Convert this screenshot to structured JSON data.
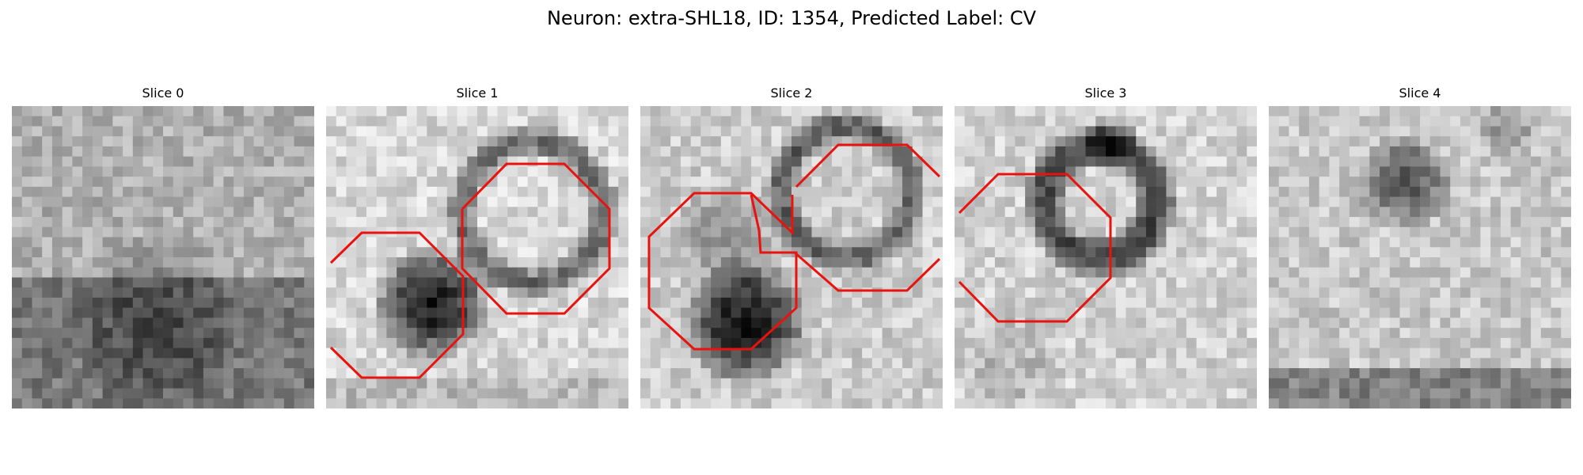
{
  "figure": {
    "title": "Neuron: extra-SHL18, ID: 1354, Predicted Label: CV"
  },
  "panels": [
    {
      "title": "Slice 0"
    },
    {
      "title": "Slice 1"
    },
    {
      "title": "Slice 2"
    },
    {
      "title": "Slice 3"
    },
    {
      "title": "Slice 4"
    }
  ],
  "colors": {
    "contour": "#e8130e",
    "background": "#ffffff"
  }
}
